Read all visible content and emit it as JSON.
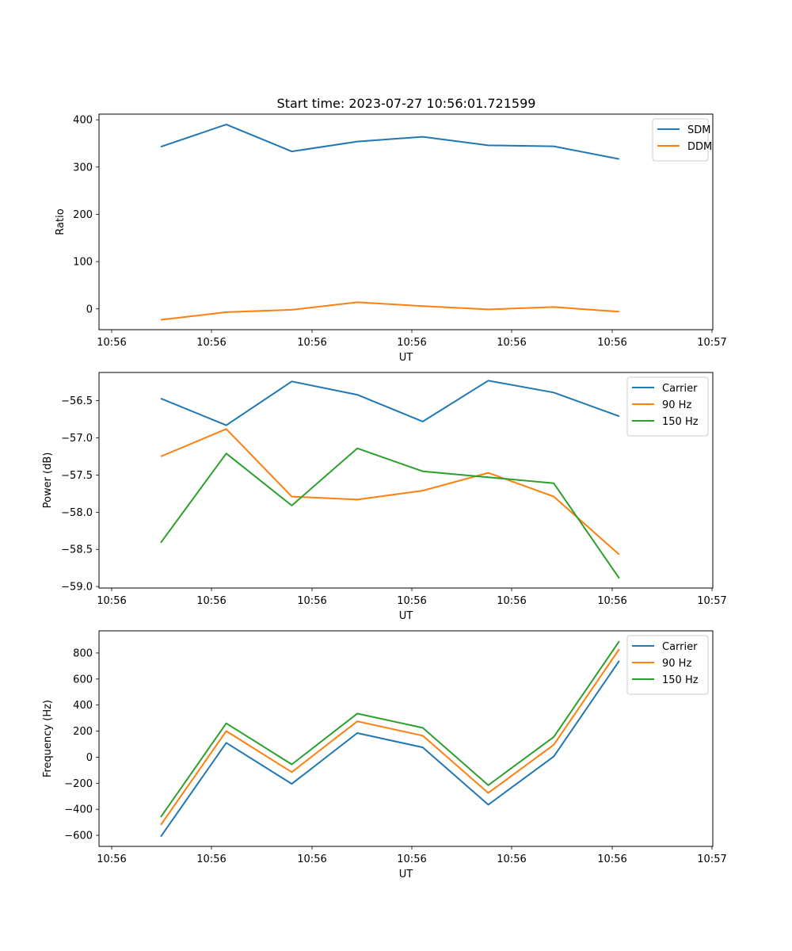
{
  "title": "Start time: 2023-07-27 10:56:01.721599",
  "colors": {
    "c0": "#1f77b4",
    "c1": "#ff7f0e",
    "c2": "#2ca02c"
  },
  "chart_data": [
    {
      "type": "line",
      "xlabel": "UT",
      "ylabel": "Ratio",
      "xtick_labels": [
        "10:56",
        "10:56",
        "10:56",
        "10:56",
        "10:56",
        "10:56",
        "10:57"
      ],
      "ylim": [
        -44,
        412
      ],
      "yticks": [
        0,
        100,
        200,
        300,
        400
      ],
      "ytick_labels": [
        "0",
        "100",
        "200",
        "300",
        "400"
      ],
      "legend": "top-right",
      "series": [
        {
          "name": "SDM",
          "color": "#1f77b4",
          "values": [
            343,
            390,
            333,
            354,
            364,
            346,
            344,
            317
          ]
        },
        {
          "name": "DDM",
          "color": "#ff7f0e",
          "values": [
            -23,
            -7,
            -2,
            14,
            6,
            -1,
            4,
            -6
          ]
        }
      ]
    },
    {
      "type": "line",
      "xlabel": "UT",
      "ylabel": "Power (dB)",
      "xtick_labels": [
        "10:56",
        "10:56",
        "10:56",
        "10:56",
        "10:56",
        "10:56",
        "10:57"
      ],
      "ylim": [
        -59.02,
        -56.12
      ],
      "yticks": [
        -56.5,
        -57.0,
        -57.5,
        -58.0,
        -58.5,
        -59.0
      ],
      "ytick_labels": [
        "−56.5",
        "−57.0",
        "−57.5",
        "−58.0",
        "−58.5",
        "−59.0"
      ],
      "legend": "top-right",
      "series": [
        {
          "name": "Carrier",
          "color": "#1f77b4",
          "values": [
            -56.47,
            -56.83,
            -56.24,
            -56.42,
            -56.78,
            -56.23,
            -56.39,
            -56.71
          ]
        },
        {
          "name": "90 Hz",
          "color": "#ff7f0e",
          "values": [
            -57.25,
            -56.88,
            -57.79,
            -57.83,
            -57.71,
            -57.47,
            -57.79,
            -58.57
          ]
        },
        {
          "name": "150 Hz",
          "color": "#2ca02c",
          "values": [
            -58.41,
            -57.21,
            -57.91,
            -57.14,
            -57.45,
            -57.53,
            -57.61,
            -58.89
          ]
        }
      ]
    },
    {
      "type": "line",
      "xlabel": "UT",
      "ylabel": "Frequency (Hz)",
      "xtick_labels": [
        "10:56",
        "10:56",
        "10:56",
        "10:56",
        "10:56",
        "10:56",
        "10:57"
      ],
      "ylim": [
        -685,
        970
      ],
      "yticks": [
        -600,
        -400,
        -200,
        0,
        200,
        400,
        600,
        800
      ],
      "ytick_labels": [
        "−600",
        "−400",
        "−200",
        "0",
        "200",
        "400",
        "600",
        "800"
      ],
      "legend": "top-right",
      "series": [
        {
          "name": "Carrier",
          "color": "#1f77b4",
          "values": [
            -610,
            110,
            -205,
            185,
            75,
            -365,
            5,
            740
          ]
        },
        {
          "name": "90 Hz",
          "color": "#ff7f0e",
          "values": [
            -520,
            200,
            -115,
            275,
            165,
            -275,
            95,
            830
          ]
        },
        {
          "name": "150 Hz",
          "color": "#2ca02c",
          "values": [
            -460,
            260,
            -55,
            335,
            225,
            -215,
            155,
            890
          ]
        }
      ]
    }
  ]
}
